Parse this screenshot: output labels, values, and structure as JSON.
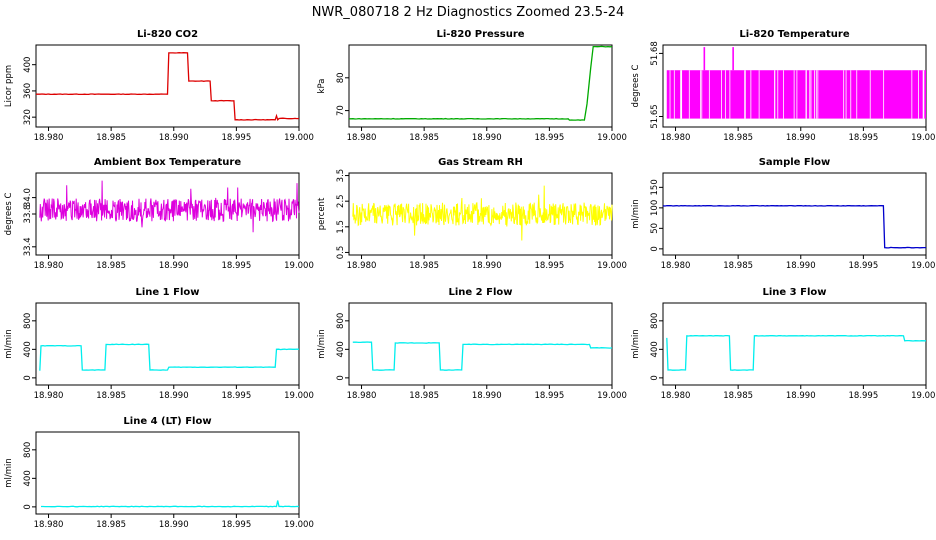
{
  "main_title": "NWR_080718  2 Hz Diagnostics Zoomed 23.5-24",
  "chart_data": [
    {
      "type": "line",
      "title": "Li-820 CO2",
      "ylabel": "Licor ppm",
      "color": "#dd0000",
      "xlim": [
        18.979,
        19.0
      ],
      "ylim": [
        305,
        430
      ],
      "xticks": [
        "18.980",
        "18.985",
        "18.990",
        "18.995",
        "19.000"
      ],
      "yticks": [
        "320",
        "360",
        "400"
      ],
      "series": [
        {
          "x": [
            18.979,
            18.9895,
            18.9896,
            18.9911,
            18.9912,
            18.9929,
            18.993,
            18.9948,
            18.9949,
            18.9981,
            18.9982,
            18.9983,
            18.9984,
            19.0
          ],
          "y": [
            355,
            355,
            418,
            418,
            375,
            375,
            345,
            345,
            316,
            316,
            322,
            316,
            318,
            318
          ]
        }
      ]
    },
    {
      "type": "line",
      "title": "Li-820 Pressure",
      "ylabel": "kPa",
      "color": "#00aa00",
      "xlim": [
        18.979,
        19.0
      ],
      "ylim": [
        65,
        90
      ],
      "xticks": [
        "18.980",
        "18.985",
        "18.990",
        "18.995",
        "19.000"
      ],
      "yticks": [
        "70",
        "80"
      ],
      "series": [
        {
          "x": [
            18.979,
            18.9965,
            18.9966,
            18.9978,
            18.998,
            18.9983,
            18.9985,
            19.0
          ],
          "y": [
            67.5,
            67.5,
            67.1,
            67.1,
            72,
            83,
            89.5,
            89.5
          ]
        }
      ]
    },
    {
      "type": "area",
      "title": "Li-820 Temperature",
      "ylabel": "degrees C",
      "color": "#ff00ff",
      "xlim": [
        18.979,
        19.0
      ],
      "ylim": [
        51.645,
        51.684
      ],
      "xticks": [
        "18.980",
        "18.985",
        "18.990",
        "18.995",
        "19.000"
      ],
      "yticks": [
        "51.65",
        "51.68"
      ],
      "series": [
        {
          "base": 51.649,
          "level": 51.672,
          "spikes_x": [
            18.9823,
            18.9846
          ],
          "spikes_y": [
            51.683,
            51.683
          ]
        }
      ]
    },
    {
      "type": "line",
      "title": "Ambient Box Temperature",
      "ylabel": "degrees C",
      "color": "#dd00dd",
      "xlim": [
        18.979,
        19.0
      ],
      "ylim": [
        33.3,
        34.3
      ],
      "xticks": [
        "18.980",
        "18.985",
        "18.990",
        "18.995",
        "19.000"
      ],
      "yticks": [
        "33.4",
        "33.8",
        "34.0"
      ],
      "series": [
        {
          "center": 33.85,
          "spread": 0.14
        }
      ]
    },
    {
      "type": "line",
      "title": "Gas Stream RH",
      "ylabel": "percent",
      "color": "#ffff00",
      "xlim": [
        18.979,
        19.0
      ],
      "ylim": [
        0.4,
        3.6
      ],
      "xticks": [
        "18.980",
        "18.985",
        "18.990",
        "18.995",
        "19.000"
      ],
      "yticks": [
        "0.5",
        "1.5",
        "2.5",
        "3.5"
      ],
      "series": [
        {
          "center": 2.0,
          "spread": 0.45
        }
      ]
    },
    {
      "type": "line",
      "title": "Sample Flow",
      "ylabel": "ml/min",
      "color": "#0000cc",
      "xlim": [
        18.979,
        19.0
      ],
      "ylim": [
        -15,
        185
      ],
      "xticks": [
        "18.980",
        "18.985",
        "18.990",
        "18.995",
        "19.000"
      ],
      "yticks": [
        "0",
        "50",
        "100",
        "150"
      ],
      "series": [
        {
          "x": [
            18.979,
            18.9966,
            18.9967,
            19.0
          ],
          "y": [
            105,
            105,
            3,
            3
          ]
        }
      ]
    },
    {
      "type": "line",
      "title": "Line 1 Flow",
      "ylabel": "ml/min",
      "color": "#00eeee",
      "xlim": [
        18.979,
        19.0
      ],
      "ylim": [
        -100,
        1050
      ],
      "xticks": [
        "18.980",
        "18.985",
        "18.990",
        "18.995",
        "19.000"
      ],
      "yticks": [
        "0",
        "400",
        "800"
      ],
      "series": [
        {
          "x": [
            18.9793,
            18.9794,
            18.9826,
            18.9827,
            18.9845,
            18.9846,
            18.988,
            18.9881,
            18.9895,
            18.9896,
            18.9981,
            18.9982,
            19.0
          ],
          "y": [
            100,
            450,
            450,
            110,
            110,
            470,
            470,
            110,
            110,
            150,
            150,
            400,
            400
          ]
        }
      ]
    },
    {
      "type": "line",
      "title": "Line 2 Flow",
      "ylabel": "ml/min",
      "color": "#00eeee",
      "xlim": [
        18.979,
        19.0
      ],
      "ylim": [
        -100,
        1050
      ],
      "xticks": [
        "18.980",
        "18.985",
        "18.990",
        "18.995",
        "19.000"
      ],
      "yticks": [
        "0",
        "400",
        "800"
      ],
      "series": [
        {
          "x": [
            18.9793,
            18.9794,
            18.9808,
            18.9809,
            18.9826,
            18.9827,
            18.9862,
            18.9863,
            18.988,
            18.9881,
            18.9982,
            18.9983,
            19.0
          ],
          "y": [
            500,
            500,
            500,
            110,
            110,
            490,
            490,
            110,
            110,
            470,
            470,
            420,
            420
          ]
        }
      ]
    },
    {
      "type": "line",
      "title": "Line 3 Flow",
      "ylabel": "ml/min",
      "color": "#00eeee",
      "xlim": [
        18.979,
        19.0
      ],
      "ylim": [
        -100,
        1050
      ],
      "xticks": [
        "18.980",
        "18.985",
        "18.990",
        "18.995",
        "19.000"
      ],
      "yticks": [
        "0",
        "400",
        "800"
      ],
      "series": [
        {
          "x": [
            18.9793,
            18.9794,
            18.9808,
            18.9809,
            18.9843,
            18.9844,
            18.9862,
            18.9863,
            18.9982,
            18.9983,
            19.0
          ],
          "y": [
            560,
            110,
            110,
            590,
            590,
            110,
            110,
            590,
            590,
            520,
            520
          ]
        }
      ]
    },
    {
      "type": "line",
      "title": "Line 4 (LT) Flow",
      "ylabel": "ml/min",
      "color": "#00eeee",
      "xlim": [
        18.979,
        19.0
      ],
      "ylim": [
        -100,
        1050
      ],
      "xticks": [
        "18.980",
        "18.985",
        "18.990",
        "18.995",
        "19.000"
      ],
      "yticks": [
        "0",
        "400",
        "800"
      ],
      "series": [
        {
          "x": [
            18.9794,
            18.9982,
            18.9983,
            18.9984,
            19.0
          ],
          "y": [
            5,
            5,
            90,
            5,
            5
          ]
        }
      ]
    }
  ]
}
